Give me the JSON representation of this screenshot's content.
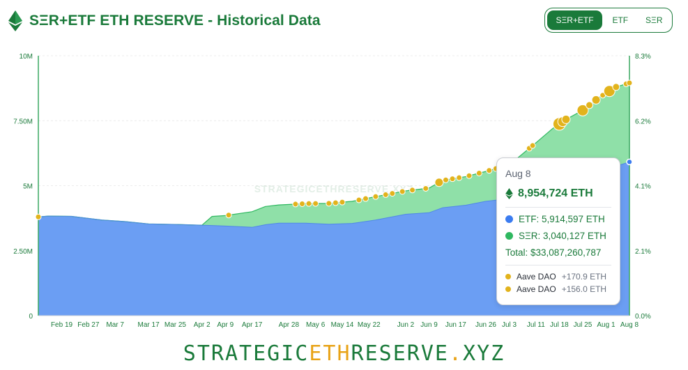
{
  "header": {
    "title": "SΞR+ETF ETH RESERVE - Historical Data",
    "toggle": [
      {
        "label": "SΞR+ETF",
        "active": true
      },
      {
        "label": "ETF",
        "active": false
      },
      {
        "label": "SΞR",
        "active": false
      }
    ]
  },
  "colors": {
    "brand_green": "#1a7a3a",
    "etf_fill": "#6b9ef3",
    "ser_fill": "#8fe0a8",
    "ser_line": "#2fb860",
    "purchase_dot": "#e2b31c",
    "footer_accent": "#e8a317"
  },
  "chart_data": {
    "type": "area",
    "watermark": "STRATEGICETHRESERVE.XYZ",
    "y_left": {
      "ticks": [
        "0",
        "2.50M",
        "5M",
        "7.50M",
        "10M"
      ],
      "range": [
        0,
        10000000
      ]
    },
    "y_right": {
      "ticks": [
        "0.0%",
        "2.1%",
        "4.1%",
        "6.2%",
        "8.3%"
      ]
    },
    "x_ticks": [
      "Feb 19",
      "Feb 27",
      "Mar 7",
      "Mar 17",
      "Mar 25",
      "Apr 2",
      "Apr 9",
      "Apr 17",
      "Apr 28",
      "May 6",
      "May 14",
      "May 22",
      "Jun 2",
      "Jun 9",
      "Jun 17",
      "Jun 26",
      "Jul 3",
      "Jul 11",
      "Jul 18",
      "Jul 25",
      "Aug 1",
      "Aug 8"
    ],
    "x_range": [
      "Feb 12",
      "Aug 8"
    ],
    "series": [
      {
        "name": "ETF",
        "stack": "bottom",
        "x": [
          "Feb 12",
          "Feb 15",
          "Feb 22",
          "Mar 3",
          "Mar 10",
          "Mar 17",
          "Mar 25",
          "Apr 2",
          "Apr 9",
          "Apr 17",
          "Apr 21",
          "Apr 25",
          "May 3",
          "May 10",
          "May 17",
          "May 24",
          "Jun 2",
          "Jun 9",
          "Jun 13",
          "Jun 20",
          "Jun 26",
          "Jul 3",
          "Jul 11",
          "Jul 16",
          "Jul 20",
          "Jul 25",
          "Jul 30",
          "Aug 4",
          "Aug 8"
        ],
        "values": [
          3800000,
          3830000,
          3820000,
          3680000,
          3620000,
          3530000,
          3510000,
          3480000,
          3450000,
          3400000,
          3500000,
          3560000,
          3560000,
          3520000,
          3550000,
          3680000,
          3900000,
          3960000,
          4150000,
          4250000,
          4400000,
          4500000,
          4650000,
          4850000,
          5100000,
          5300000,
          5500000,
          5750000,
          5914597
        ]
      },
      {
        "name": "SΞR",
        "stack": "top",
        "x": [
          "Feb 12",
          "Feb 15",
          "Feb 22",
          "Mar 3",
          "Mar 10",
          "Mar 17",
          "Mar 25",
          "Apr 2",
          "Apr 5",
          "Apr 9",
          "Apr 17",
          "Apr 21",
          "Apr 25",
          "May 3",
          "May 10",
          "May 17",
          "May 24",
          "Jun 2",
          "Jun 9",
          "Jun 13",
          "Jun 20",
          "Jun 26",
          "Jul 3",
          "Jul 11",
          "Jul 16",
          "Jul 20",
          "Jul 25",
          "Jul 30",
          "Aug 4",
          "Aug 8"
        ],
        "values": [
          0,
          0,
          0,
          0,
          0,
          0,
          0,
          0,
          350000,
          400000,
          600000,
          700000,
          700000,
          750000,
          800000,
          850000,
          900000,
          900000,
          950000,
          1050000,
          1100000,
          1150000,
          1300000,
          2000000,
          2350000,
          2450000,
          2600000,
          2900000,
          3050000,
          3040127
        ]
      }
    ],
    "purchase_markers": [
      {
        "x": "Feb 12",
        "size": 4
      },
      {
        "x": "Apr 10",
        "size": 4
      },
      {
        "x": "Apr 30",
        "size": 4
      },
      {
        "x": "May 2",
        "size": 4
      },
      {
        "x": "May 4",
        "size": 4
      },
      {
        "x": "May 6",
        "size": 4
      },
      {
        "x": "May 10",
        "size": 4
      },
      {
        "x": "May 12",
        "size": 4
      },
      {
        "x": "May 14",
        "size": 4
      },
      {
        "x": "May 19",
        "size": 4
      },
      {
        "x": "May 21",
        "size": 4
      },
      {
        "x": "May 24",
        "size": 4
      },
      {
        "x": "May 27",
        "size": 4
      },
      {
        "x": "May 29",
        "size": 4
      },
      {
        "x": "Jun 1",
        "size": 4
      },
      {
        "x": "Jun 4",
        "size": 4
      },
      {
        "x": "Jun 8",
        "size": 4
      },
      {
        "x": "Jun 12",
        "size": 6
      },
      {
        "x": "Jun 14",
        "size": 4
      },
      {
        "x": "Jun 16",
        "size": 4
      },
      {
        "x": "Jun 18",
        "size": 4
      },
      {
        "x": "Jun 21",
        "size": 4
      },
      {
        "x": "Jun 24",
        "size": 4
      },
      {
        "x": "Jun 27",
        "size": 4
      },
      {
        "x": "Jun 29",
        "size": 4
      },
      {
        "x": "Jul 9",
        "size": 4
      },
      {
        "x": "Jul 10",
        "size": 4
      },
      {
        "x": "Jul 18",
        "size": 9
      },
      {
        "x": "Jul 19",
        "size": 7
      },
      {
        "x": "Jul 20",
        "size": 6
      },
      {
        "x": "Jul 25",
        "size": 8
      },
      {
        "x": "Jul 27",
        "size": 5
      },
      {
        "x": "Jul 29",
        "size": 6
      },
      {
        "x": "Jul 31",
        "size": 4
      },
      {
        "x": "Aug 2",
        "size": 8
      },
      {
        "x": "Aug 4",
        "size": 5
      },
      {
        "x": "Aug 7",
        "size": 4
      },
      {
        "x": "Aug 8",
        "size": 4
      }
    ],
    "hover_point": {
      "x": "Aug 8",
      "value": 5914597
    }
  },
  "tooltip": {
    "date": "Aug 8",
    "total_eth": "8,954,724 ETH",
    "etf": "ETF: 5,914,597 ETH",
    "ser": "SΞR: 3,040,127 ETH",
    "total_usd": "Total: $33,087,260,787",
    "purchases": [
      {
        "name": "Aave DAO",
        "amount": "+170.9 ETH"
      },
      {
        "name": "Aave DAO",
        "amount": "+156.0 ETH"
      }
    ]
  },
  "footer": {
    "part1": "STRATEGIC",
    "part2": "ETH",
    "part3": "RESERVE",
    "part4": ".",
    "part5": "XYZ"
  }
}
